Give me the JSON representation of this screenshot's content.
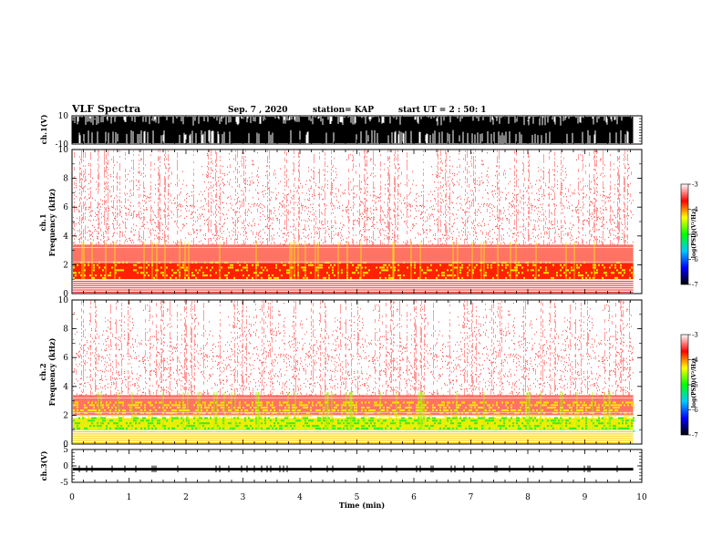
{
  "header": {
    "title": "VLF Spectra",
    "date": "Sep. 7 , 2020",
    "station": "station= KAP",
    "start": "start  UT =   2 : 50: 1"
  },
  "chart_data": {
    "type": "heatmap",
    "title": "VLF Spectra",
    "xlabel": "Time  (min)",
    "xlim": [
      0,
      10
    ],
    "x_ticks": [
      "0",
      "1",
      "2",
      "3",
      "4",
      "5",
      "6",
      "7",
      "8",
      "9",
      "10"
    ],
    "data_end_min": 9.85,
    "panels": [
      {
        "kind": "waveform",
        "ylabel": "ch.1(V)",
        "ylim": [
          -10,
          10
        ],
        "y_ticks": [
          "10",
          "-10"
        ],
        "amplitude_description": "saturated bursts"
      },
      {
        "kind": "spectrogram",
        "ylabel": "ch.1",
        "ylabel2": "Frequency (kHz)",
        "ylim": [
          0,
          10
        ],
        "y_ticks": [
          "0",
          "2",
          "4",
          "6",
          "8",
          "10"
        ],
        "colorbar": {
          "label": "log(PSD)(V²/Hz)",
          "range": [
            -7,
            -3
          ],
          "ticks": [
            "-3",
            "-4",
            "-5",
            "-6",
            "-7"
          ]
        },
        "bands": [
          {
            "from_khz": 0.0,
            "to_khz": 0.9,
            "level": "white-red lines"
          },
          {
            "from_khz": 1.0,
            "to_khz": 2.2,
            "level": "red-yellow"
          },
          {
            "from_khz": 2.2,
            "to_khz": 3.5,
            "level": "red"
          },
          {
            "from_khz": 3.5,
            "to_khz": 10.0,
            "level": "sparse red"
          }
        ]
      },
      {
        "kind": "spectrogram",
        "ylabel": "ch.2",
        "ylabel2": "Frequency (kHz)",
        "ylim": [
          0,
          10
        ],
        "y_ticks": [
          "0",
          "2",
          "4",
          "6",
          "8",
          "10"
        ],
        "colorbar": {
          "label": "log(PSD)(V²/Hz)",
          "range": [
            -7,
            -3
          ],
          "ticks": [
            "-3",
            "-4",
            "-5",
            "-6",
            "-7"
          ]
        },
        "bands": [
          {
            "from_khz": 0.0,
            "to_khz": 0.9,
            "level": "yellow lines"
          },
          {
            "from_khz": 0.9,
            "to_khz": 1.8,
            "level": "green-yellow"
          },
          {
            "from_khz": 1.8,
            "to_khz": 3.5,
            "level": "red"
          },
          {
            "from_khz": 3.5,
            "to_khz": 10.0,
            "level": "sparse red"
          }
        ]
      },
      {
        "kind": "waveform",
        "ylabel": "ch.3(V)",
        "ylim": [
          -5,
          5
        ],
        "y_ticks": [
          "5",
          "0",
          "-5"
        ],
        "amplitude_description": "thin band near -1 V"
      }
    ],
    "colormap": [
      "#000000",
      "#0000ff",
      "#00c8ff",
      "#00ff00",
      "#ffff00",
      "#ff0000",
      "#ffffff"
    ]
  }
}
